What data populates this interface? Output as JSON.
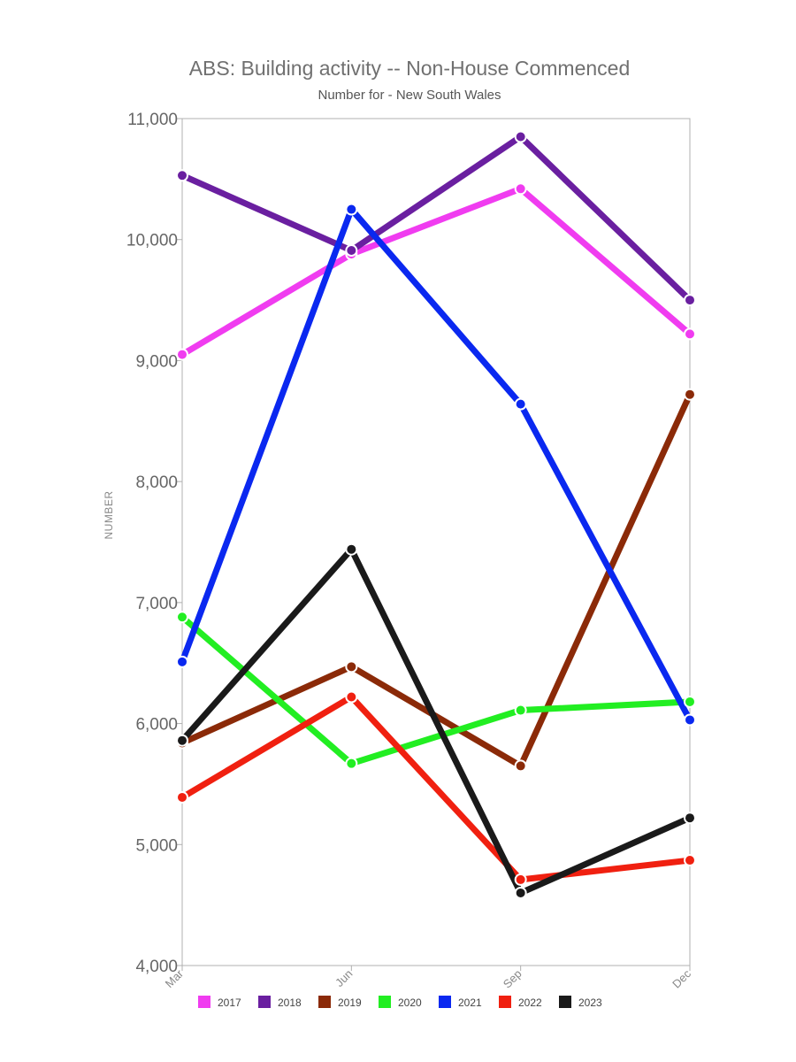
{
  "chart_data": {
    "type": "line",
    "title": "ABS: Building activity -- Non-House Commenced",
    "subtitle": "Number for - New South Wales",
    "xlabel": "",
    "ylabel": "NUMBER",
    "categories": [
      "Mar",
      "Jun",
      "Sep",
      "Dec"
    ],
    "ylim": [
      4000,
      11000
    ],
    "yticks": [
      4000,
      5000,
      6000,
      7000,
      8000,
      9000,
      10000,
      11000
    ],
    "ytick_labels": [
      "4,000",
      "5,000",
      "6,000",
      "7,000",
      "8,000",
      "9,000",
      "10,000",
      "11,000"
    ],
    "grid": false,
    "legend_position": "bottom",
    "series": [
      {
        "name": "2017",
        "color": "#f03cf0",
        "values": [
          9050,
          9880,
          10420,
          9220
        ]
      },
      {
        "name": "2018",
        "color": "#6a1fa0",
        "values": [
          10530,
          9910,
          10850,
          9500
        ]
      },
      {
        "name": "2019",
        "color": "#8b2a08",
        "values": [
          5840,
          6470,
          5650,
          8720
        ]
      },
      {
        "name": "2020",
        "color": "#22ee22",
        "values": [
          6880,
          5670,
          6110,
          6180
        ]
      },
      {
        "name": "2021",
        "color": "#0a28f0",
        "values": [
          6510,
          10250,
          8640,
          6030
        ]
      },
      {
        "name": "2022",
        "color": "#f02010",
        "values": [
          5390,
          6220,
          4710,
          4870
        ]
      },
      {
        "name": "2023",
        "color": "#1a1a1a",
        "values": [
          5860,
          7440,
          4600,
          5220
        ]
      }
    ]
  }
}
